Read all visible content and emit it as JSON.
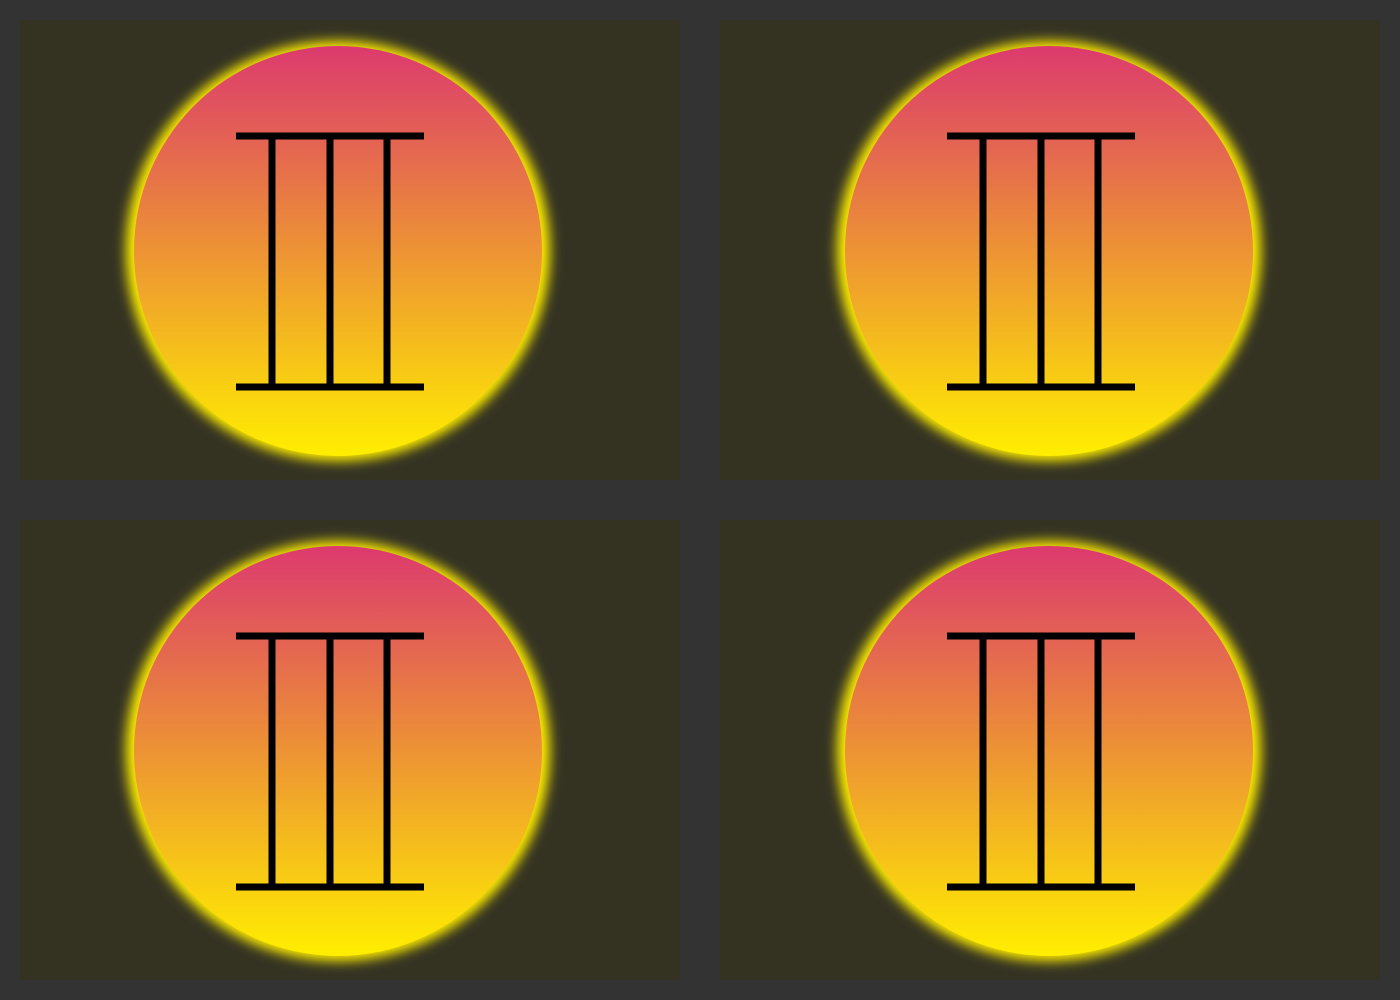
{
  "colors": {
    "page_background": "#333333",
    "panel_background": "#343322",
    "gradient_top": "#dc3a6e",
    "gradient_mid": "#eb8a3a",
    "gradient_bottom": "#ffee00",
    "glow": "#ffee00",
    "glyph_stroke": "#000000"
  },
  "panels": [
    {
      "icon": "gemini-symbol-icon"
    },
    {
      "icon": "gemini-symbol-icon"
    },
    {
      "icon": "gemini-symbol-icon"
    },
    {
      "icon": "gemini-symbol-icon"
    }
  ]
}
